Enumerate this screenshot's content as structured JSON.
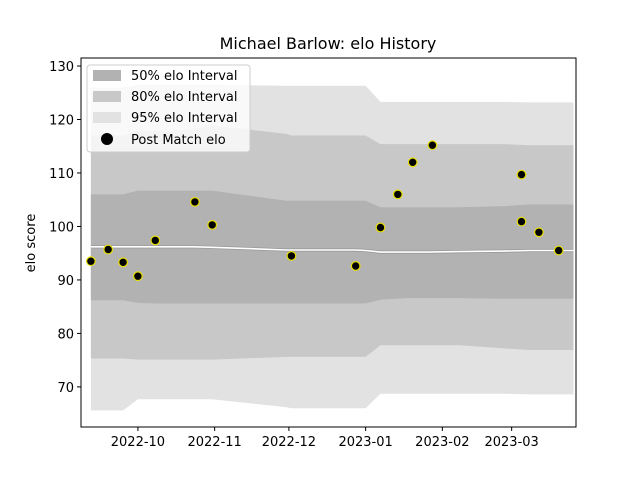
{
  "chart_data": {
    "type": "line",
    "title": "Michael Barlow: elo History",
    "xlabel": "",
    "ylabel": "elo score",
    "x_ticks": [
      "2022-10",
      "2022-11",
      "2022-12",
      "2023-01",
      "2023-02",
      "2023-03"
    ],
    "x_tick_dates": [
      "2022-10-01",
      "2022-11-01",
      "2022-12-01",
      "2023-01-01",
      "2023-02-01",
      "2023-03-01"
    ],
    "x_range": [
      "2022-09-08",
      "2023-03-27"
    ],
    "y_ticks": [
      70,
      80,
      90,
      100,
      110,
      120,
      130
    ],
    "ylim": [
      62.5,
      131.5
    ],
    "grid": false,
    "legend_position": "top-left",
    "legend": [
      {
        "label": "50% elo Interval",
        "color": "#b2b2b2"
      },
      {
        "label": "80% elo Interval",
        "color": "#c8c8c8"
      },
      {
        "label": "95% elo Interval",
        "color": "#e2e2e2"
      },
      {
        "label": "Post Match elo",
        "color": "#000000",
        "marker_edge": "#e8e000"
      }
    ],
    "band_dates": [
      "2022-09-12",
      "2022-09-19",
      "2022-09-25",
      "2022-10-01",
      "2022-10-08",
      "2022-10-16",
      "2022-10-24",
      "2022-10-31",
      "2022-11-30",
      "2022-12-02",
      "2022-12-15",
      "2022-12-28",
      "2023-01-01",
      "2023-01-07",
      "2023-01-18",
      "2023-01-26",
      "2023-02-08",
      "2023-02-26",
      "2023-03-08",
      "2023-03-20",
      "2023-03-26"
    ],
    "mean_elo": [
      96.2,
      96.2,
      96.2,
      96.2,
      96.2,
      96.2,
      96.2,
      96.1,
      95.6,
      95.6,
      95.6,
      95.6,
      95.5,
      95.2,
      95.2,
      95.2,
      95.3,
      95.4,
      95.5,
      95.5,
      95.5
    ],
    "interval_50": {
      "lower": [
        86.2,
        86.2,
        86.2,
        85.7,
        85.6,
        85.6,
        85.6,
        85.6,
        85.6,
        85.6,
        85.6,
        85.6,
        85.6,
        86.3,
        86.6,
        86.6,
        86.6,
        86.5,
        86.5,
        86.5,
        86.5
      ],
      "upper": [
        106.0,
        106.0,
        106.0,
        106.7,
        106.7,
        106.7,
        106.7,
        106.7,
        104.8,
        104.8,
        104.8,
        104.8,
        104.8,
        103.6,
        103.6,
        103.6,
        103.6,
        103.8,
        104.1,
        104.1,
        104.1
      ]
    },
    "interval_80": {
      "lower": [
        75.3,
        75.3,
        75.3,
        75.1,
        75.1,
        75.1,
        75.1,
        75.1,
        75.6,
        75.6,
        75.6,
        75.6,
        75.6,
        77.8,
        77.8,
        77.8,
        77.8,
        77.2,
        76.9,
        76.9,
        76.9
      ],
      "upper": [
        117.0,
        117.0,
        117.0,
        117.9,
        117.9,
        117.9,
        118.3,
        118.9,
        117.3,
        117.0,
        117.0,
        117.0,
        117.0,
        115.4,
        115.4,
        115.4,
        115.4,
        115.4,
        115.2,
        115.2,
        115.2
      ]
    },
    "interval_95": {
      "lower": [
        65.6,
        65.6,
        65.6,
        67.7,
        67.7,
        67.7,
        67.7,
        67.7,
        66.2,
        66.0,
        66.0,
        66.0,
        66.0,
        68.7,
        68.7,
        68.7,
        68.7,
        68.7,
        68.6,
        68.6,
        68.6
      ],
      "upper": [
        126.0,
        126.0,
        126.0,
        126.5,
        126.5,
        126.5,
        126.5,
        126.5,
        126.3,
        126.3,
        126.3,
        126.3,
        126.3,
        123.3,
        123.3,
        123.3,
        123.3,
        123.3,
        123.2,
        123.2,
        123.2
      ]
    },
    "post_match_points": [
      {
        "x": "2022-09-12",
        "y": 93.5
      },
      {
        "x": "2022-09-19",
        "y": 95.7
      },
      {
        "x": "2022-09-25",
        "y": 93.3
      },
      {
        "x": "2022-10-01",
        "y": 90.7
      },
      {
        "x": "2022-10-08",
        "y": 97.4
      },
      {
        "x": "2022-10-24",
        "y": 104.6
      },
      {
        "x": "2022-10-31",
        "y": 100.3
      },
      {
        "x": "2022-12-02",
        "y": 94.5
      },
      {
        "x": "2022-12-28",
        "y": 92.6
      },
      {
        "x": "2023-01-07",
        "y": 99.8
      },
      {
        "x": "2023-01-14",
        "y": 106.0
      },
      {
        "x": "2023-01-20",
        "y": 112.0
      },
      {
        "x": "2023-01-28",
        "y": 115.2
      },
      {
        "x": "2023-03-05",
        "y": 109.7
      },
      {
        "x": "2023-03-05",
        "y": 100.9
      },
      {
        "x": "2023-03-12",
        "y": 98.9
      },
      {
        "x": "2023-03-20",
        "y": 95.5
      }
    ]
  }
}
